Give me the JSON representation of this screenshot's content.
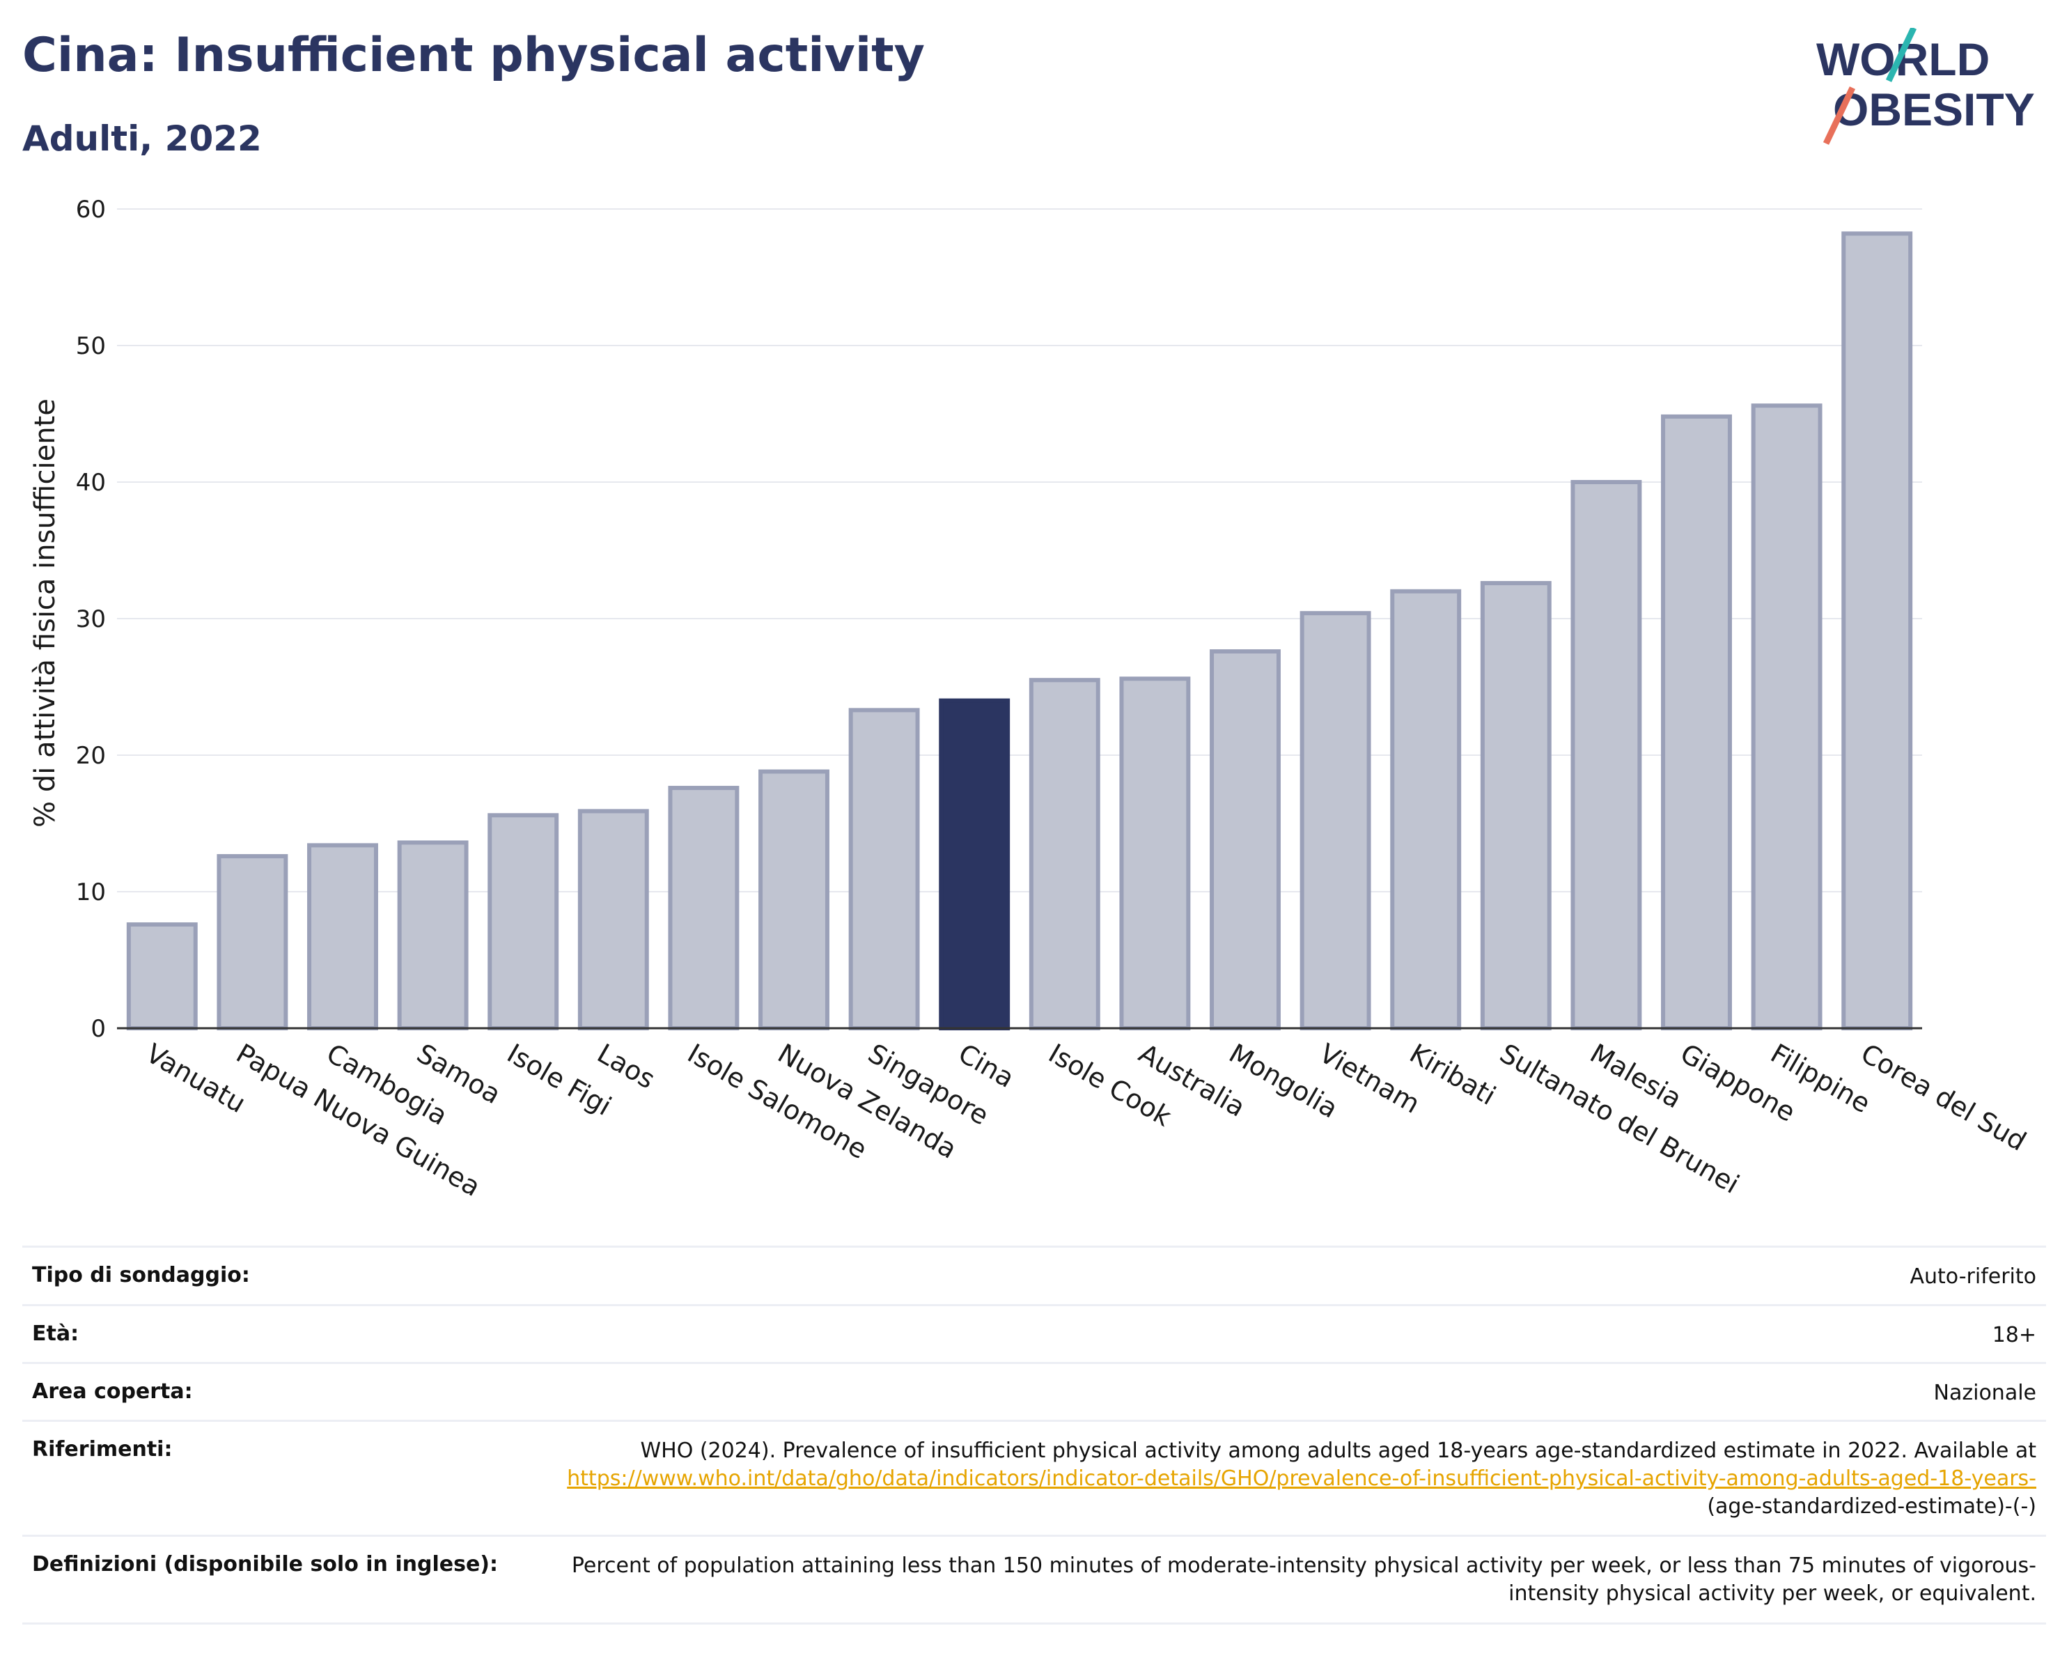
{
  "header": {
    "title": "Cina: Insufficient physical activity",
    "subtitle": "Adulti, 2022",
    "logo_line1": "WORLD",
    "logo_line2": "OBESITY"
  },
  "colors": {
    "title": "#2b3561",
    "bar_default": "#c0c4d1",
    "bar_default_stroke": "#9aa0b8",
    "bar_highlight": "#2b3561",
    "grid": "#e6e8ee",
    "link": "#e6a400",
    "logo_teal": "#2bb5b0",
    "logo_coral": "#e8705a"
  },
  "chart_data": {
    "type": "bar",
    "categories": [
      "Vanuatu",
      "Papua Nuova Guinea",
      "Cambogia",
      "Samoa",
      "Isole Figi",
      "Laos",
      "Isole Salomone",
      "Nuova Zelanda",
      "Singapore",
      "Cina",
      "Isole Cook",
      "Australia",
      "Mongolia",
      "Vietnam",
      "Kiribati",
      "Sultanato del Brunei",
      "Malesia",
      "Giappone",
      "Filippine",
      "Corea del Sud"
    ],
    "values": [
      7.6,
      12.6,
      13.4,
      13.6,
      15.6,
      15.9,
      17.6,
      18.8,
      23.3,
      24.0,
      25.5,
      25.6,
      27.6,
      30.4,
      32.0,
      32.6,
      40.0,
      44.8,
      45.6,
      58.2
    ],
    "highlight": "Cina",
    "ylabel": "% di attività fisica insufficiente",
    "xlabel": "",
    "ylim": [
      0,
      60
    ],
    "yticks": [
      0,
      10,
      20,
      30,
      40,
      50,
      60
    ],
    "grid": true
  },
  "meta": {
    "survey_label": "Tipo di sondaggio:",
    "survey_value": "Auto-riferito",
    "age_label": "Età:",
    "age_value": "18+",
    "area_label": "Area coperta:",
    "area_value": "Nazionale",
    "refs_label": "Riferimenti:",
    "refs_text": "WHO (2024). Prevalence of insufficient physical activity among adults aged 18-years age-standardized estimate in 2022. Available at",
    "refs_link": "https://www.who.int/data/gho/data/indicators/indicator-details/GHO/prevalence-of-insufficient-physical-activity-among-adults-aged-18-years-",
    "refs_suffix": "(age-standardized-estimate)-(-)",
    "defs_label": "Definizioni (disponibile solo in inglese):",
    "defs_value": "Percent of population attaining less than 150 minutes of moderate-intensity physical activity per week, or less than 75 minutes of vigorous-intensity physical activity per week, or equivalent."
  }
}
